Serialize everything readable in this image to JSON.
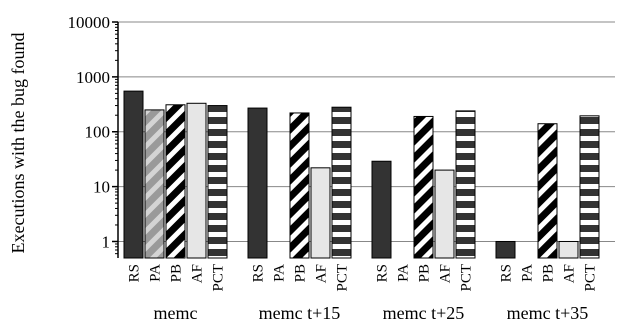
{
  "chart_data": {
    "type": "bar",
    "ylabel": "Executions with the bug found",
    "xlabel": "",
    "yscale": "log",
    "ylim": [
      0.5,
      10000
    ],
    "yticks": [
      1,
      10,
      100,
      1000,
      10000
    ],
    "ytick_labels": [
      "1",
      "10",
      "100",
      "1000",
      "10000"
    ],
    "grid": "horizontal",
    "legend": "none",
    "categories": [
      "RS",
      "PA",
      "PB",
      "AF",
      "PCT"
    ],
    "groups": [
      {
        "name": "memc",
        "values": [
          550,
          250,
          310,
          330,
          300
        ]
      },
      {
        "name": "memc t+15",
        "values": [
          270,
          null,
          220,
          22,
          280
        ]
      },
      {
        "name": "memc t+25",
        "values": [
          29,
          null,
          190,
          20,
          240
        ]
      },
      {
        "name": "memc t+35",
        "values": [
          1,
          null,
          140,
          1,
          195
        ]
      }
    ],
    "series_styles": {
      "RS": {
        "fill": "#333333",
        "pattern": "solid"
      },
      "PA": {
        "fill": "#999999",
        "pattern": "diagonal-light"
      },
      "PB": {
        "fill": "#000000",
        "pattern": "diagonal-dark"
      },
      "AF": {
        "fill": "#e6e6e6",
        "pattern": "solid"
      },
      "PCT": {
        "fill": "#333333",
        "pattern": "horizontal-stripes"
      }
    }
  }
}
